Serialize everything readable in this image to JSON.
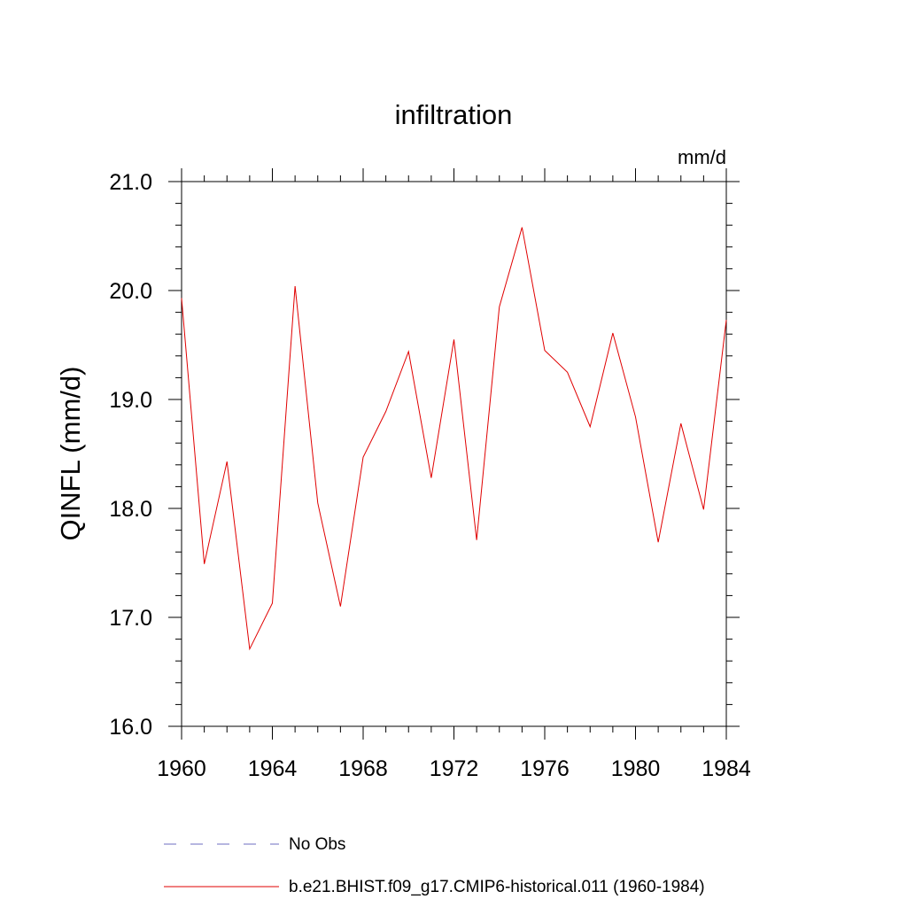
{
  "chart_data": {
    "type": "line",
    "title": "infiltration",
    "units": "mm/d",
    "ylabel": "QINFL  (mm/d)",
    "xlabel": "",
    "xlim": [
      1960,
      1984
    ],
    "ylim": [
      16.0,
      21.0
    ],
    "x_ticks": [
      "1960",
      "1964",
      "1968",
      "1972",
      "1976",
      "1980",
      "1984"
    ],
    "y_ticks": [
      "16.0",
      "17.0",
      "18.0",
      "19.0",
      "20.0",
      "21.0"
    ],
    "grid": false,
    "legend_position": "bottom",
    "x": [
      1960,
      1961,
      1962,
      1963,
      1964,
      1965,
      1966,
      1967,
      1968,
      1969,
      1970,
      1971,
      1972,
      1973,
      1974,
      1975,
      1976,
      1977,
      1978,
      1979,
      1980,
      1981,
      1982,
      1983,
      1984
    ],
    "series": [
      {
        "name": "b.e21.BHIST.f09_g17.CMIP6-historical.011 (1960-1984)",
        "color": "#e00000",
        "values": [
          19.93,
          17.49,
          18.43,
          16.71,
          17.13,
          20.04,
          18.05,
          17.1,
          18.47,
          18.89,
          19.44,
          18.28,
          19.55,
          17.71,
          19.85,
          20.58,
          19.45,
          19.25,
          18.75,
          19.61,
          18.84,
          17.69,
          18.78,
          17.99,
          19.73
        ]
      }
    ],
    "legend": [
      {
        "label": "No Obs",
        "style": "dashed",
        "color": "#6d6dc0"
      },
      {
        "label": "b.e21.BHIST.f09_g17.CMIP6-historical.011 (1960-1984)",
        "style": "solid",
        "color": "#e00000"
      }
    ]
  }
}
